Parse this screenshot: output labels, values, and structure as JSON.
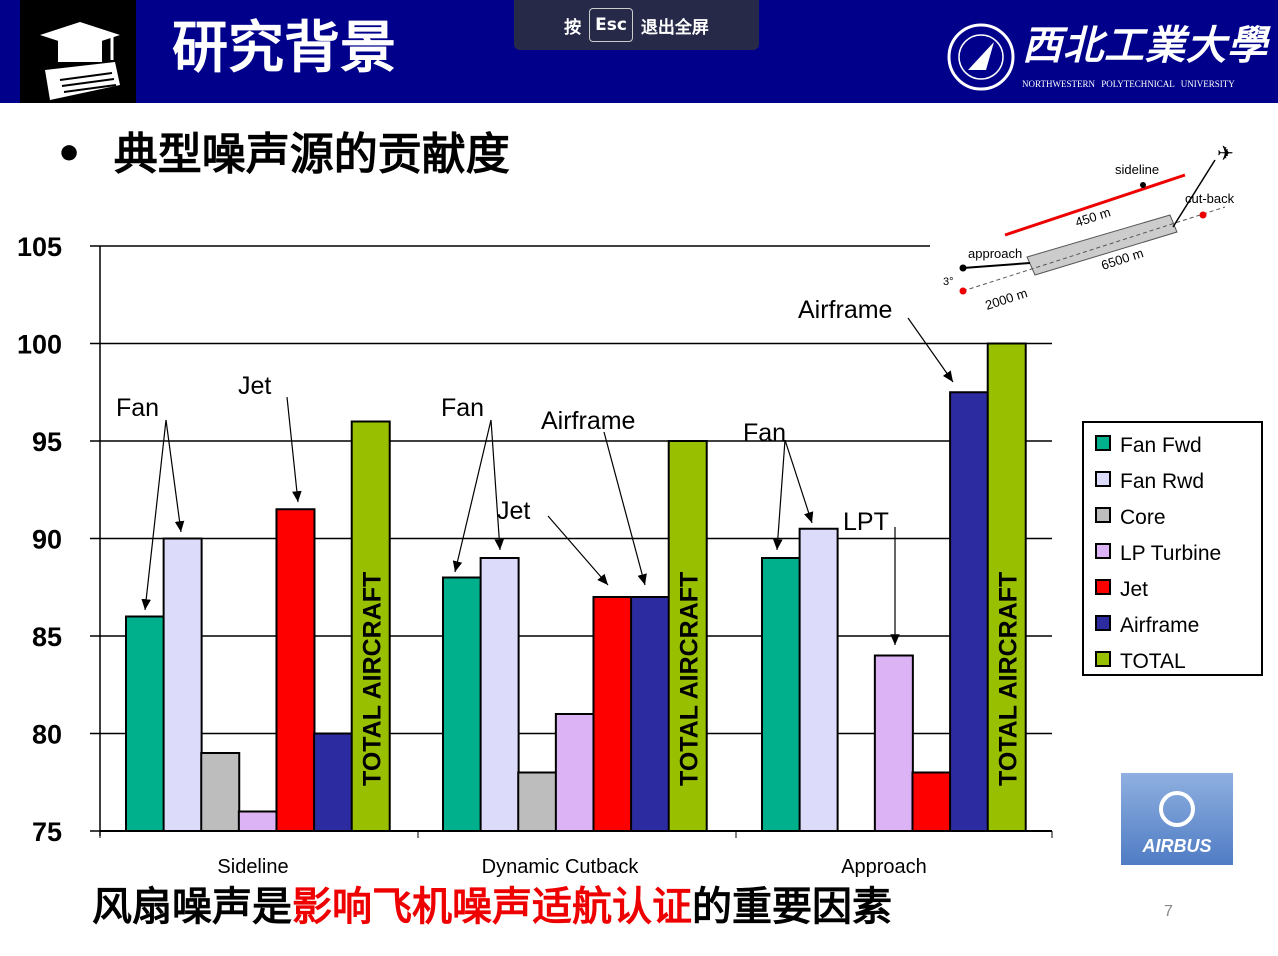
{
  "header": {
    "title": "研究背景",
    "esc_prefix": "按",
    "esc_key": "Esc",
    "esc_suffix": "退出全屏",
    "university_cn": "西北工業大學",
    "university_en": "NORTHWESTERN POLYTECHNICAL UNIVERSITY"
  },
  "bullet": "典型噪声源的贡献度",
  "diagram": {
    "sideline": "sideline",
    "cutback": "cut-back",
    "approach": "approach",
    "angle": "3°",
    "d1": "450 m",
    "d2": "6500 m",
    "d3": "2000 m"
  },
  "bottom": {
    "part1": "风扇噪声是",
    "part2": "影响飞机噪声适航认证",
    "part3": "的重要因素"
  },
  "page_number": "7",
  "logo": "AIRBUS",
  "chart_data": {
    "type": "bar",
    "categories": [
      "Sideline",
      "Dynamic Cutback",
      "Approach"
    ],
    "ylim": [
      75,
      105
    ],
    "yticks": [
      "75",
      "80",
      "85",
      "90",
      "95",
      "100",
      "105"
    ],
    "series": [
      {
        "name": "Fan Fwd",
        "color": "#00b08c",
        "values": [
          86,
          88,
          89
        ]
      },
      {
        "name": "Fan Rwd",
        "color": "#dcdcfa",
        "values": [
          90,
          89,
          90.5
        ]
      },
      {
        "name": "Core",
        "color": "#bdbdbd",
        "values": [
          79,
          78,
          null
        ]
      },
      {
        "name": "LP Turbine",
        "color": "#dcb4f5",
        "values": [
          76,
          81,
          84
        ]
      },
      {
        "name": "Jet",
        "color": "#ff0000",
        "values": [
          91.5,
          87,
          78
        ]
      },
      {
        "name": "Airframe",
        "color": "#2c2ca0",
        "values": [
          80,
          87,
          97.5
        ]
      },
      {
        "name": "TOTAL",
        "color": "#99c000",
        "values": [
          96,
          95,
          100
        ]
      }
    ],
    "bar_label": "TOTAL AIRCRAFT",
    "legend": "right",
    "grid": true,
    "annotations": [
      "Fan",
      "Jet",
      "Fan",
      "Jet",
      "Airframe",
      "Fan",
      "LPT",
      "Airframe"
    ]
  }
}
